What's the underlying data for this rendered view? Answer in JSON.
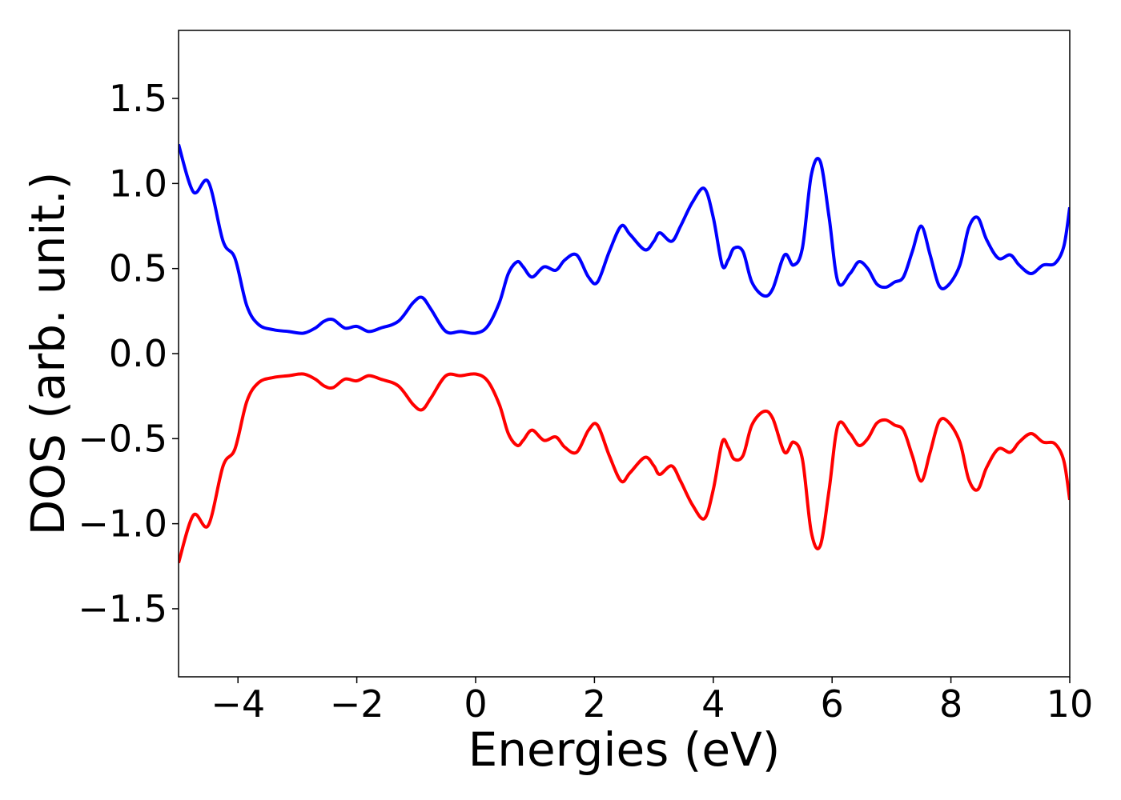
{
  "chart_data": {
    "type": "line",
    "title": "",
    "xlabel": "Energies (eV)",
    "ylabel": "DOS (arb. unit.)",
    "xlim": [
      -5,
      10
    ],
    "ylim": [
      -1.9,
      1.9
    ],
    "xticks": [
      -4,
      -2,
      0,
      2,
      4,
      6,
      8,
      10
    ],
    "xtick_labels": [
      "−4",
      "−2",
      "0",
      "2",
      "4",
      "6",
      "8",
      "10"
    ],
    "yticks": [
      1.5,
      1.0,
      0.5,
      0.0,
      -0.5,
      -1.0,
      -1.5
    ],
    "ytick_labels": [
      "1.5",
      "1.0",
      "0.5",
      "0.0",
      "−0.5",
      "−1.0",
      "−1.5"
    ],
    "grid": false,
    "legend": "none",
    "series": [
      {
        "color": "#0000ff",
        "x": [
          -5.0,
          -4.75,
          -4.5,
          -4.25,
          -4.05,
          -3.85,
          -3.65,
          -3.4,
          -3.15,
          -2.9,
          -2.7,
          -2.55,
          -2.4,
          -2.2,
          -2.0,
          -1.8,
          -1.6,
          -1.3,
          -1.05,
          -0.9,
          -0.75,
          -0.5,
          -0.25,
          0.0,
          0.2,
          0.4,
          0.55,
          0.7,
          0.8,
          0.95,
          1.15,
          1.35,
          1.5,
          1.7,
          1.9,
          2.05,
          2.25,
          2.45,
          2.6,
          2.85,
          3.0,
          3.1,
          3.3,
          3.45,
          3.65,
          3.85,
          4.0,
          4.15,
          4.25,
          4.35,
          4.5,
          4.65,
          4.85,
          5.0,
          5.2,
          5.35,
          5.5,
          5.65,
          5.8,
          5.95,
          6.1,
          6.3,
          6.45,
          6.6,
          6.75,
          6.9,
          7.05,
          7.2,
          7.35,
          7.5,
          7.65,
          7.8,
          7.95,
          8.15,
          8.3,
          8.45,
          8.6,
          8.8,
          9.0,
          9.15,
          9.35,
          9.55,
          9.75,
          9.9,
          10.0
        ],
        "y": [
          1.23,
          0.95,
          1.01,
          0.66,
          0.56,
          0.28,
          0.17,
          0.14,
          0.13,
          0.12,
          0.15,
          0.19,
          0.2,
          0.15,
          0.16,
          0.13,
          0.15,
          0.19,
          0.3,
          0.33,
          0.26,
          0.13,
          0.13,
          0.12,
          0.16,
          0.3,
          0.47,
          0.54,
          0.51,
          0.45,
          0.51,
          0.49,
          0.55,
          0.58,
          0.45,
          0.42,
          0.6,
          0.75,
          0.7,
          0.61,
          0.66,
          0.71,
          0.66,
          0.75,
          0.89,
          0.97,
          0.8,
          0.52,
          0.55,
          0.62,
          0.6,
          0.42,
          0.34,
          0.38,
          0.58,
          0.52,
          0.62,
          1.05,
          1.13,
          0.8,
          0.42,
          0.47,
          0.54,
          0.5,
          0.41,
          0.39,
          0.42,
          0.45,
          0.6,
          0.75,
          0.58,
          0.4,
          0.4,
          0.52,
          0.74,
          0.8,
          0.67,
          0.56,
          0.58,
          0.52,
          0.47,
          0.52,
          0.53,
          0.63,
          0.86
        ]
      },
      {
        "color": "#ff0000",
        "x": [
          -5.0,
          -4.75,
          -4.5,
          -4.25,
          -4.05,
          -3.85,
          -3.65,
          -3.4,
          -3.15,
          -2.9,
          -2.7,
          -2.55,
          -2.4,
          -2.2,
          -2.0,
          -1.8,
          -1.6,
          -1.3,
          -1.05,
          -0.9,
          -0.75,
          -0.5,
          -0.25,
          0.0,
          0.2,
          0.4,
          0.55,
          0.7,
          0.8,
          0.95,
          1.15,
          1.35,
          1.5,
          1.7,
          1.9,
          2.05,
          2.25,
          2.45,
          2.6,
          2.85,
          3.0,
          3.1,
          3.3,
          3.45,
          3.65,
          3.85,
          4.0,
          4.15,
          4.25,
          4.35,
          4.5,
          4.65,
          4.85,
          5.0,
          5.2,
          5.35,
          5.5,
          5.65,
          5.8,
          5.95,
          6.1,
          6.3,
          6.45,
          6.6,
          6.75,
          6.9,
          7.05,
          7.2,
          7.35,
          7.5,
          7.65,
          7.8,
          7.95,
          8.15,
          8.3,
          8.45,
          8.6,
          8.8,
          9.0,
          9.15,
          9.35,
          9.55,
          9.75,
          9.9,
          10.0
        ],
        "y": [
          -1.23,
          -0.95,
          -1.01,
          -0.66,
          -0.56,
          -0.28,
          -0.17,
          -0.14,
          -0.13,
          -0.12,
          -0.15,
          -0.19,
          -0.2,
          -0.15,
          -0.16,
          -0.13,
          -0.15,
          -0.19,
          -0.3,
          -0.33,
          -0.26,
          -0.13,
          -0.13,
          -0.12,
          -0.16,
          -0.3,
          -0.47,
          -0.54,
          -0.51,
          -0.45,
          -0.51,
          -0.49,
          -0.55,
          -0.58,
          -0.45,
          -0.42,
          -0.6,
          -0.75,
          -0.7,
          -0.61,
          -0.66,
          -0.71,
          -0.66,
          -0.75,
          -0.89,
          -0.97,
          -0.8,
          -0.52,
          -0.55,
          -0.62,
          -0.6,
          -0.42,
          -0.34,
          -0.38,
          -0.58,
          -0.52,
          -0.62,
          -1.05,
          -1.13,
          -0.8,
          -0.42,
          -0.47,
          -0.54,
          -0.5,
          -0.41,
          -0.39,
          -0.42,
          -0.45,
          -0.6,
          -0.75,
          -0.58,
          -0.4,
          -0.4,
          -0.52,
          -0.74,
          -0.8,
          -0.67,
          -0.56,
          -0.58,
          -0.52,
          -0.47,
          -0.52,
          -0.53,
          -0.63,
          -0.86
        ]
      }
    ]
  }
}
